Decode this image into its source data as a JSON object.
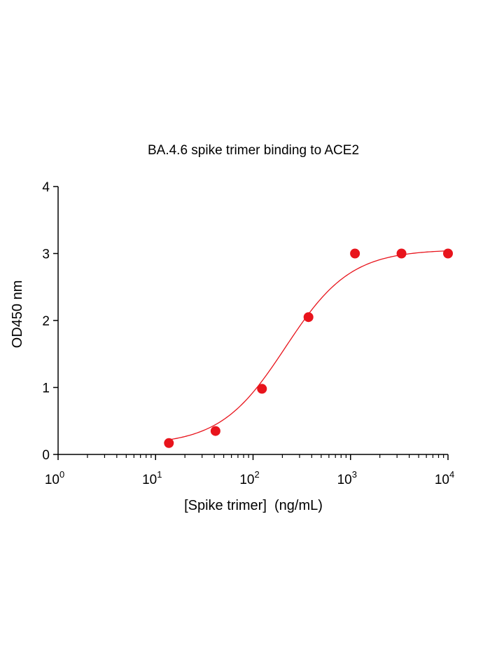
{
  "chart_data": {
    "type": "scatter",
    "title": "BA.4.6 spike trimer binding to ACE2",
    "xlabel": "[Spike trimer]  (ng/mL)",
    "ylabel": "OD450 nm",
    "x_scale": "log10",
    "xlim": [
      1,
      10000
    ],
    "ylim": [
      0,
      4
    ],
    "x_ticks": [
      {
        "base": "10",
        "exp": "0",
        "value": 1
      },
      {
        "base": "10",
        "exp": "1",
        "value": 10
      },
      {
        "base": "10",
        "exp": "2",
        "value": 100
      },
      {
        "base": "10",
        "exp": "3",
        "value": 1000
      },
      {
        "base": "10",
        "exp": "4",
        "value": 10000
      }
    ],
    "y_ticks": [
      "0",
      "1",
      "2",
      "3",
      "4"
    ],
    "grid": false,
    "color": "#e8141c",
    "series": [
      {
        "x": [
          13.7,
          41.2,
          123.5,
          370.4,
          1111,
          3333,
          10000
        ],
        "y": [
          0.17,
          0.35,
          0.98,
          2.05,
          3.0,
          3.0,
          3.0
        ]
      }
    ],
    "fit": {
      "type": "4PL",
      "bottom": 0.14,
      "top": 3.06,
      "ec50": 215,
      "hill": 1.3
    }
  }
}
